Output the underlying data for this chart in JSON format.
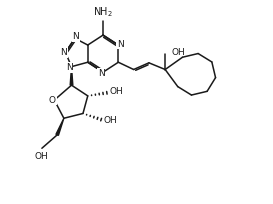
{
  "bg_color": "#ffffff",
  "line_color": "#1a1a1a",
  "line_width": 1.1,
  "font_size": 6.5,
  "fig_width": 2.73,
  "fig_height": 2.04,
  "dpi": 100,
  "xlim": [
    -0.3,
    11.3
  ],
  "ylim": [
    -0.8,
    9.8
  ]
}
